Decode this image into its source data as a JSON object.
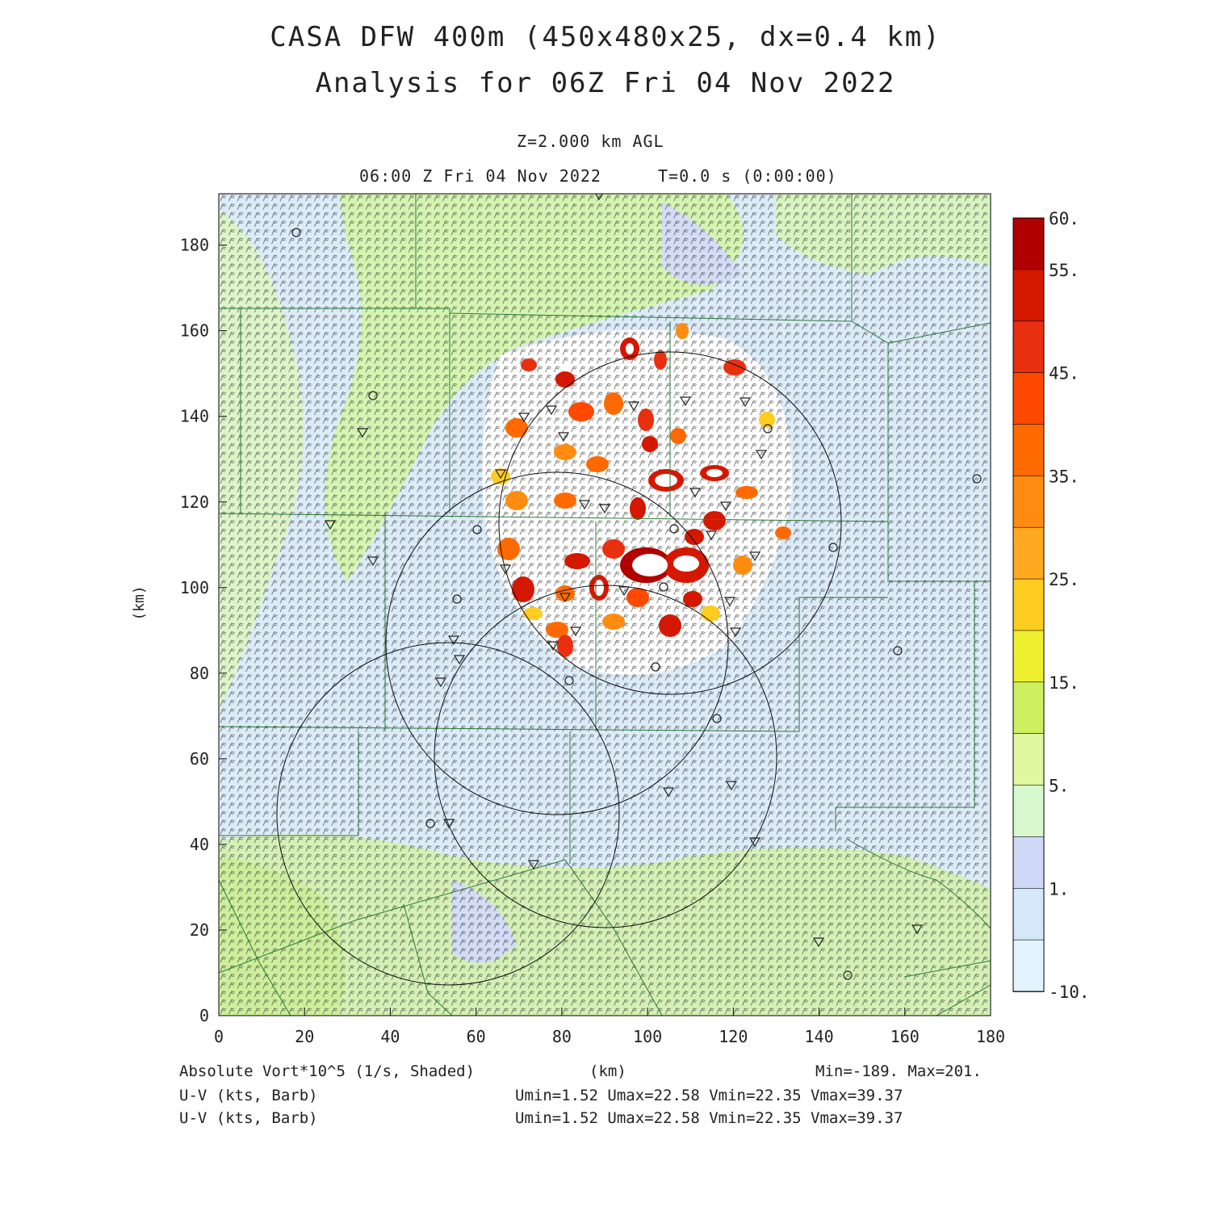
{
  "header": {
    "title_line1": "CASA DFW 400m (450x480x25, dx=0.4 km)",
    "title_line2": "Analysis for 06Z Fri 04 Nov 2022",
    "level": "Z=2.000 km AGL",
    "valid_time": "06:00 Z Fri 04 Nov 2022",
    "model_time": "T=0.0 s (0:00:00)"
  },
  "axes": {
    "ylabel": "(km)",
    "xlabel": "(km)",
    "x_ticks": [
      "0",
      "20",
      "40",
      "60",
      "80",
      "100",
      "120",
      "140",
      "160",
      "180"
    ],
    "y_ticks": [
      "0",
      "20",
      "40",
      "60",
      "80",
      "100",
      "120",
      "140",
      "160",
      "180"
    ],
    "x_range": [
      0,
      180
    ],
    "y_range": [
      0,
      192
    ]
  },
  "colorbar": {
    "labels": [
      "60.",
      "55.",
      "45.",
      "35.",
      "25.",
      "15.",
      "5.",
      "1.",
      "-10."
    ],
    "colors": [
      "#b00000",
      "#d41800",
      "#e83010",
      "#ff4800",
      "#ff6a00",
      "#ff8c10",
      "#ffa820",
      "#ffcc20",
      "#eef030",
      "#ccf060",
      "#e0f8a0",
      "#d8f8d0",
      "#d0d8f8",
      "#d4e8fa",
      "#e4f4fe"
    ]
  },
  "footer": {
    "field1": "Absolute Vort*10^5 (1/s, Shaded)",
    "field2": "U-V (kts, Barb)",
    "field3": "U-V (kts, Barb)",
    "xunit": "(km)",
    "minmax": "Min=-189. Max=201.",
    "uv_stats1": "Umin=1.52 Umax=22.58 Vmin=22.35 Vmax=39.37",
    "uv_stats2": "Umin=1.52 Umax=22.58 Vmin=22.35 Vmax=39.37"
  },
  "map": {
    "background_color": "#dcebf8",
    "radar_rings_count": 4
  }
}
